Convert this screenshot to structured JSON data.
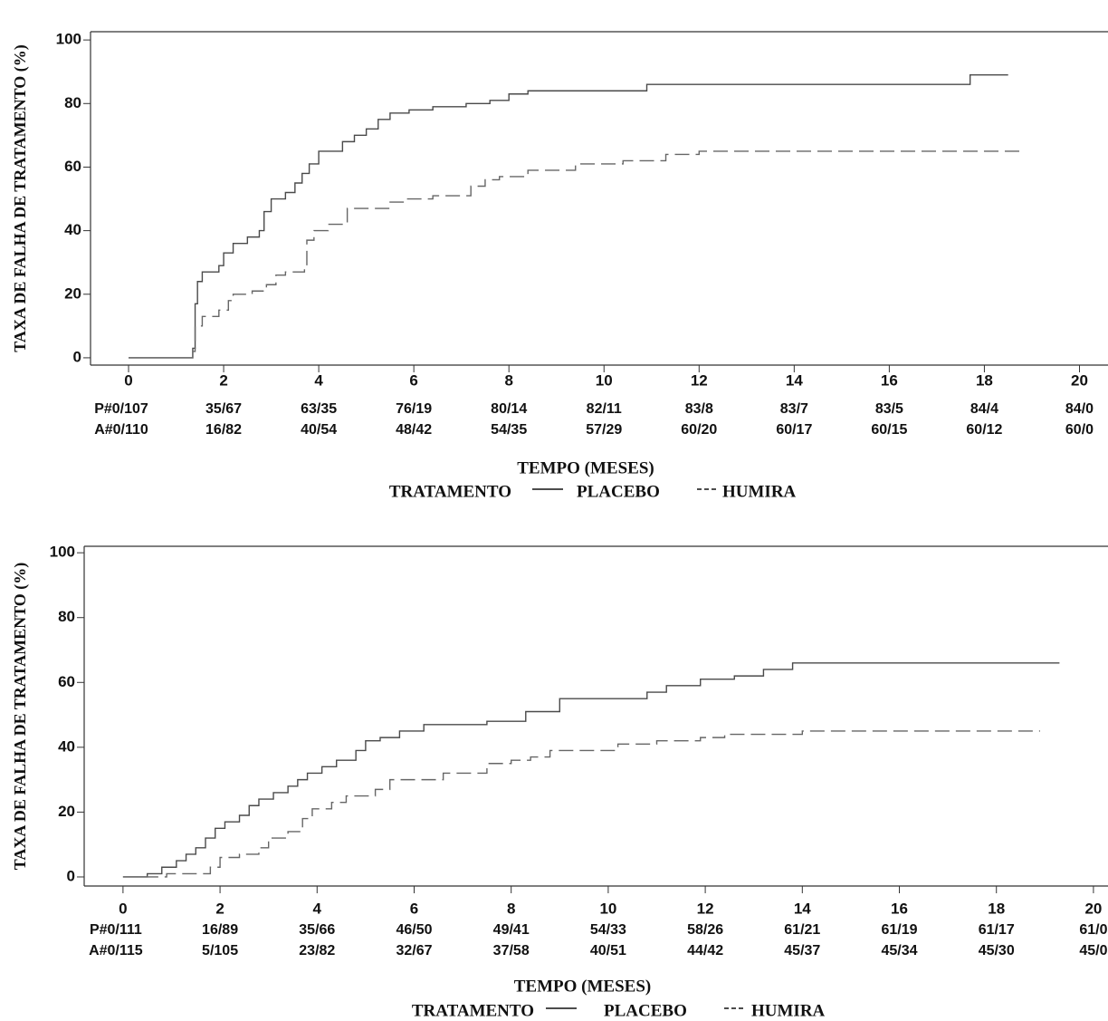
{
  "chart_data": [
    {
      "type": "line",
      "y_label": "TAXA DE FALHA DE TRATAMENTO (%)",
      "x_label": "TEMPO (MESES)",
      "legend_title": "TRATAMENTO",
      "xlim": [
        -0.8,
        20.6
      ],
      "ylim": [
        -2.3,
        102.6
      ],
      "xticks": [
        0,
        2,
        4,
        6,
        8,
        10,
        12,
        14,
        16,
        18,
        20
      ],
      "yticks": [
        0,
        20,
        40,
        60,
        80,
        100
      ],
      "risk_table": [
        [
          "P#0/107",
          "35/67",
          "63/35",
          "76/19",
          "80/14",
          "82/11",
          "83/8",
          "83/7",
          "83/5",
          "84/4",
          "84/0"
        ],
        [
          "A#0/110",
          "16/82",
          "40/54",
          "48/42",
          "54/35",
          "57/29",
          "60/20",
          "60/17",
          "60/15",
          "60/12",
          "60/0"
        ]
      ],
      "series": [
        {
          "name": "PLACEBO",
          "color": "#4a4a4a",
          "linestyle": "solid",
          "x": [
            0,
            1.35,
            1.35,
            1.4,
            1.4,
            1.45,
            1.45,
            1.55,
            1.55,
            1.9,
            1.9,
            2.0,
            2.0,
            2.2,
            2.2,
            2.5,
            2.5,
            2.75,
            2.75,
            2.85,
            2.85,
            3.0,
            3.0,
            3.3,
            3.3,
            3.5,
            3.5,
            3.65,
            3.65,
            3.8,
            3.8,
            4.0,
            4.0,
            4.5,
            4.5,
            4.75,
            4.75,
            5.0,
            5.0,
            5.25,
            5.25,
            5.5,
            5.5,
            5.9,
            5.9,
            6.4,
            6.4,
            7.1,
            7.1,
            7.6,
            7.6,
            8.0,
            8.0,
            8.4,
            8.4,
            10.9,
            10.9,
            17.7,
            17.7,
            18.5
          ],
          "values": [
            0,
            0,
            3,
            3,
            17,
            17,
            24,
            24,
            27,
            27,
            29,
            29,
            33,
            33,
            36,
            36,
            38,
            38,
            40,
            40,
            46,
            46,
            50,
            50,
            52,
            52,
            55,
            55,
            58,
            58,
            61,
            61,
            65,
            65,
            68,
            68,
            70,
            70,
            72,
            72,
            75,
            75,
            77,
            77,
            78,
            78,
            79,
            79,
            80,
            80,
            81,
            81,
            83,
            83,
            84,
            84,
            86,
            86,
            89,
            89
          ]
        },
        {
          "name": "HUMIRA",
          "color": "#666666",
          "linestyle": "dashed",
          "x": [
            0,
            1.35,
            1.35,
            1.4,
            1.4,
            1.55,
            1.55,
            1.9,
            1.9,
            2.1,
            2.1,
            2.2,
            2.2,
            2.6,
            2.6,
            2.9,
            2.9,
            3.1,
            3.1,
            3.3,
            3.3,
            3.7,
            3.7,
            3.75,
            3.75,
            3.9,
            3.9,
            4.2,
            4.2,
            4.6,
            4.6,
            5.5,
            5.5,
            5.8,
            5.8,
            6.4,
            6.4,
            7.2,
            7.2,
            7.5,
            7.5,
            7.8,
            7.8,
            8.4,
            8.4,
            9.4,
            9.4,
            10.4,
            10.4,
            11.3,
            11.3,
            12.0,
            12.0,
            18.8
          ],
          "values": [
            0,
            0,
            2,
            2,
            10,
            10,
            13,
            13,
            15,
            15,
            18,
            18,
            20,
            20,
            21,
            21,
            23,
            23,
            26,
            26,
            27,
            27,
            28,
            28,
            37,
            37,
            40,
            40,
            42,
            42,
            47,
            47,
            49,
            49,
            50,
            50,
            51,
            51,
            54,
            54,
            56,
            56,
            57,
            57,
            59,
            59,
            61,
            61,
            62,
            62,
            64,
            64,
            65,
            65
          ]
        }
      ]
    },
    {
      "type": "line",
      "y_label": "TAXA DE FALHA DE TRATAMENTO (%)",
      "x_label": "TEMPO (MESES)",
      "legend_title": "TRATAMENTO",
      "xlim": [
        -0.8,
        20.3
      ],
      "ylim": [
        -2.8,
        102
      ],
      "xticks": [
        0,
        2,
        4,
        6,
        8,
        10,
        12,
        14,
        16,
        18,
        20
      ],
      "yticks": [
        0,
        20,
        40,
        60,
        80,
        100
      ],
      "risk_table": [
        [
          "P#0/111",
          "16/89",
          "35/66",
          "46/50",
          "49/41",
          "54/33",
          "58/26",
          "61/21",
          "61/19",
          "61/17",
          "61/0"
        ],
        [
          "A#0/115",
          "5/105",
          "23/82",
          "32/67",
          "37/58",
          "40/51",
          "44/42",
          "45/37",
          "45/34",
          "45/30",
          "45/0"
        ]
      ],
      "series": [
        {
          "name": "PLACEBO",
          "color": "#4a4a4a",
          "linestyle": "solid",
          "x": [
            0,
            0.5,
            0.5,
            0.8,
            0.8,
            1.1,
            1.1,
            1.3,
            1.3,
            1.5,
            1.5,
            1.7,
            1.7,
            1.9,
            1.9,
            2.1,
            2.1,
            2.4,
            2.4,
            2.6,
            2.6,
            2.8,
            2.8,
            3.1,
            3.1,
            3.4,
            3.4,
            3.6,
            3.6,
            3.8,
            3.8,
            4.1,
            4.1,
            4.4,
            4.4,
            4.8,
            4.8,
            5.0,
            5.0,
            5.3,
            5.3,
            5.7,
            5.7,
            6.2,
            6.2,
            7.5,
            7.5,
            8.3,
            8.3,
            9.0,
            9.0,
            10.8,
            10.8,
            11.2,
            11.2,
            11.9,
            11.9,
            12.6,
            12.6,
            13.2,
            13.2,
            13.8,
            13.8,
            19.3
          ],
          "values": [
            0,
            0,
            1,
            1,
            3,
            3,
            5,
            5,
            7,
            7,
            9,
            9,
            12,
            12,
            15,
            15,
            17,
            17,
            19,
            19,
            22,
            22,
            24,
            24,
            26,
            26,
            28,
            28,
            30,
            30,
            32,
            32,
            34,
            34,
            36,
            36,
            39,
            39,
            42,
            42,
            43,
            43,
            45,
            45,
            47,
            47,
            48,
            48,
            51,
            51,
            55,
            55,
            57,
            57,
            59,
            59,
            61,
            61,
            62,
            62,
            64,
            64,
            66,
            66
          ]
        },
        {
          "name": "HUMIRA",
          "color": "#666666",
          "linestyle": "dashed",
          "x": [
            0,
            0.9,
            0.9,
            1.8,
            1.8,
            2.0,
            2.0,
            2.4,
            2.4,
            2.8,
            2.8,
            3.0,
            3.0,
            3.4,
            3.4,
            3.7,
            3.7,
            3.9,
            3.9,
            4.3,
            4.3,
            4.6,
            4.6,
            5.2,
            5.2,
            5.5,
            5.5,
            6.6,
            6.6,
            7.5,
            7.5,
            8.0,
            8.0,
            8.4,
            8.4,
            8.8,
            8.8,
            10.2,
            10.2,
            11.0,
            11.0,
            11.9,
            11.9,
            12.4,
            12.4,
            14.0,
            14.0,
            18.9
          ],
          "values": [
            0,
            0,
            1,
            1,
            3,
            3,
            6,
            6,
            7,
            7,
            9,
            9,
            12,
            12,
            14,
            14,
            18,
            18,
            21,
            21,
            23,
            23,
            25,
            25,
            27,
            27,
            30,
            30,
            32,
            32,
            35,
            35,
            36,
            36,
            37,
            37,
            39,
            39,
            41,
            41,
            42,
            42,
            43,
            43,
            44,
            44,
            45,
            45
          ]
        }
      ]
    }
  ]
}
